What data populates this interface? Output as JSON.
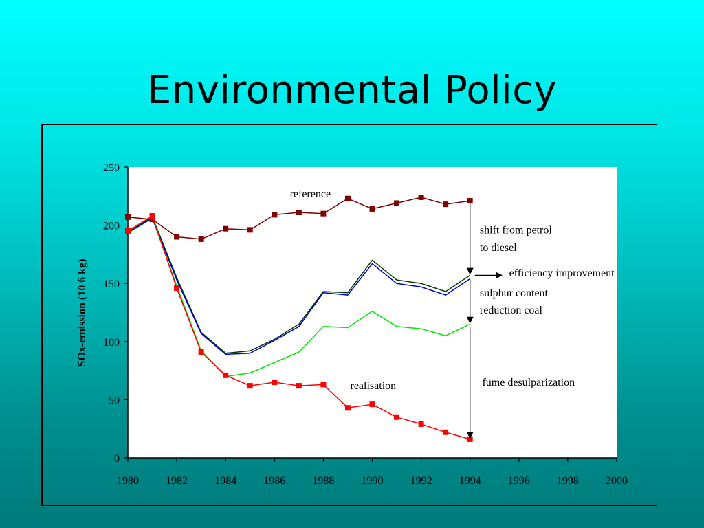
{
  "slide": {
    "title": "Environmental Policy"
  },
  "chart_data": {
    "type": "line",
    "title": "",
    "xlabel": "",
    "ylabel": "SOx-emission (10  6 kg)",
    "xlim": [
      1980,
      2000
    ],
    "ylim": [
      0,
      250
    ],
    "x_ticks": [
      1980,
      1982,
      1984,
      1986,
      1988,
      1990,
      1992,
      1994,
      1996,
      1998,
      2000
    ],
    "y_ticks": [
      0,
      50,
      100,
      150,
      200,
      250
    ],
    "grid": false,
    "plot_background": "#ffffff",
    "series": [
      {
        "id": "reference",
        "color": "#800000",
        "marker": "square",
        "x": [
          1980,
          1981,
          1982,
          1983,
          1984,
          1985,
          1986,
          1987,
          1988,
          1989,
          1990,
          1991,
          1992,
          1993,
          1994
        ],
        "y": [
          207,
          205,
          190,
          188,
          197,
          196,
          209,
          211,
          210,
          223,
          214,
          219,
          224,
          218,
          221
        ]
      },
      {
        "id": "petrol-diesel-shift",
        "color": "#004000",
        "marker": "none",
        "x": [
          1980,
          1981,
          1982,
          1983,
          1984,
          1985,
          1986,
          1987,
          1988,
          1989,
          1990,
          1991,
          1992,
          1993,
          1994
        ],
        "y": [
          194,
          207,
          155,
          108,
          90,
          92,
          102,
          115,
          143,
          142,
          170,
          153,
          150,
          143,
          157
        ]
      },
      {
        "id": "efficiency-improvement",
        "color": "#0000cc",
        "marker": "none",
        "x": [
          1980,
          1981,
          1982,
          1983,
          1984,
          1985,
          1986,
          1987,
          1988,
          1989,
          1990,
          1991,
          1992,
          1993,
          1994
        ],
        "y": [
          194,
          206,
          153,
          107,
          89,
          90,
          101,
          113,
          142,
          140,
          167,
          150,
          147,
          140,
          154
        ]
      },
      {
        "id": "sulphur-reduction",
        "color": "#00e600",
        "marker": "none",
        "x": [
          1980,
          1981,
          1982,
          1983,
          1984,
          1985,
          1986,
          1987,
          1988,
          1989,
          1990,
          1991,
          1992,
          1993,
          1994
        ],
        "y": [
          193,
          206,
          148,
          92,
          70,
          73,
          82,
          91,
          113,
          112,
          126,
          113,
          111,
          105,
          115
        ]
      },
      {
        "id": "realisation",
        "color": "#ff0000",
        "marker": "square",
        "x": [
          1980,
          1981,
          1982,
          1983,
          1984,
          1985,
          1986,
          1987,
          1988,
          1989,
          1990,
          1991,
          1992,
          1993,
          1994
        ],
        "y": [
          195,
          208,
          146,
          91,
          71,
          62,
          65,
          62,
          63,
          43,
          46,
          35,
          29,
          22,
          16
        ]
      }
    ],
    "annotations": [
      {
        "id": "label-reference",
        "text": "reference",
        "x": 1988.3,
        "y": 224,
        "anchor": "end"
      },
      {
        "id": "label-realisation",
        "text": "realisation",
        "x": 1989.1,
        "y": 59,
        "anchor": "start"
      },
      {
        "id": "label-shift-1",
        "text": "shift from petrol",
        "x": 1994.4,
        "y": 193,
        "anchor": "start"
      },
      {
        "id": "label-shift-2",
        "text": "to diesel",
        "x": 1994.4,
        "y": 178,
        "anchor": "start"
      },
      {
        "id": "label-efficiency",
        "text": "efficiency improvement",
        "x": 1995.6,
        "y": 156,
        "anchor": "start"
      },
      {
        "id": "label-sulphur-1",
        "text": "sulphur content",
        "x": 1994.4,
        "y": 139,
        "anchor": "start"
      },
      {
        "id": "label-sulphur-2",
        "text": "reduction coal",
        "x": 1994.4,
        "y": 124,
        "anchor": "start"
      },
      {
        "id": "label-fume",
        "text": "fume desulparization",
        "x": 1994.5,
        "y": 62,
        "anchor": "start"
      }
    ],
    "arrows": [
      {
        "id": "arrow-petrol-diesel",
        "direction": "down",
        "x": 1994,
        "y_from": 219,
        "y_to": 158
      },
      {
        "id": "arrow-efficiency",
        "direction": "right",
        "y": 157,
        "x_from": 1994.2,
        "x_to": 1995.3
      },
      {
        "id": "arrow-sulphur",
        "direction": "down",
        "x": 1994,
        "y_from": 153,
        "y_to": 116
      },
      {
        "id": "arrow-fume",
        "direction": "down",
        "x": 1994,
        "y_from": 113,
        "y_to": 17
      }
    ]
  }
}
